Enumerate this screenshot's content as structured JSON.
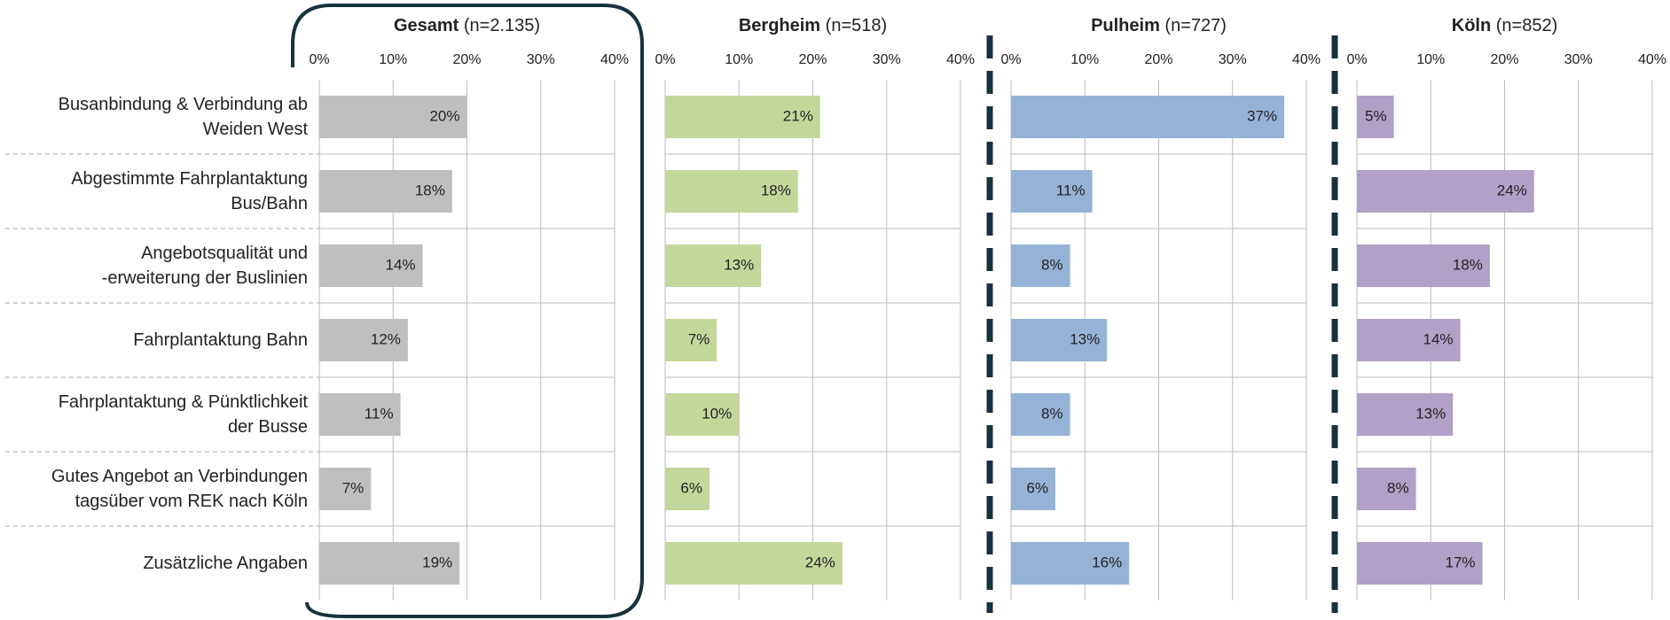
{
  "chart_data": [
    {
      "type": "bar",
      "title": "Gesamt",
      "subtitle": "(n=2.135)",
      "color": "#bfbfbf",
      "categories": [
        "Busanbindung & Verbindung ab\nWeiden West",
        "Abgestimmte Fahrplantaktung\nBus/Bahn",
        "Angebotsqualität und\n-erweiterung der Buslinien",
        "Fahrplantaktung Bahn",
        "Fahrplantaktung & Pünktlichkeit\nder Busse",
        "Gutes Angebot an Verbindungen\ntagsüber vom REK nach Köln",
        "Zusätzliche Angaben"
      ],
      "values": [
        20,
        18,
        14,
        12,
        11,
        7,
        19
      ],
      "value_labels": [
        "20%",
        "18%",
        "14%",
        "12%",
        "11%",
        "7%",
        "19%"
      ],
      "xlim": [
        0,
        40
      ],
      "xticks": [
        {
          "value": 0,
          "label": "0%"
        },
        {
          "value": 10,
          "label": "10%"
        },
        {
          "value": 20,
          "label": "20%"
        },
        {
          "value": 30,
          "label": "30%"
        },
        {
          "value": 40,
          "label": "40%"
        }
      ],
      "grid": true
    },
    {
      "type": "bar",
      "title": "Bergheim",
      "subtitle": "(n=518)",
      "color": "#c4d79b",
      "values": [
        21,
        18,
        13,
        7,
        10,
        6,
        24
      ],
      "value_labels": [
        "21%",
        "18%",
        "13%",
        "7%",
        "10%",
        "6%",
        "24%"
      ],
      "xlim": [
        0,
        40
      ],
      "xticks": [
        {
          "value": 0,
          "label": "0%"
        },
        {
          "value": 10,
          "label": "10%"
        },
        {
          "value": 20,
          "label": "20%"
        },
        {
          "value": 30,
          "label": "30%"
        },
        {
          "value": 40,
          "label": "40%"
        }
      ],
      "grid": true
    },
    {
      "type": "bar",
      "title": "Pulheim",
      "subtitle": "(n=727)",
      "color": "#95b3d7",
      "values": [
        37,
        11,
        8,
        13,
        8,
        6,
        16
      ],
      "value_labels": [
        "37%",
        "11%",
        "8%",
        "13%",
        "8%",
        "6%",
        "16%"
      ],
      "xlim": [
        0,
        40
      ],
      "xticks": [
        {
          "value": 0,
          "label": "0%"
        },
        {
          "value": 10,
          "label": "10%"
        },
        {
          "value": 20,
          "label": "20%"
        },
        {
          "value": 30,
          "label": "30%"
        },
        {
          "value": 40,
          "label": "40%"
        }
      ],
      "grid": true
    },
    {
      "type": "bar",
      "title": "Köln",
      "subtitle": "(n=852)",
      "color": "#b1a0c7",
      "values": [
        5,
        24,
        18,
        14,
        13,
        8,
        17
      ],
      "value_labels": [
        "5%",
        "24%",
        "18%",
        "14%",
        "13%",
        "8%",
        "17%"
      ],
      "xlim": [
        0,
        40
      ],
      "xticks": [
        {
          "value": 0,
          "label": "0%"
        },
        {
          "value": 10,
          "label": "10%"
        },
        {
          "value": 20,
          "label": "20%"
        },
        {
          "value": 30,
          "label": "30%"
        },
        {
          "value": 40,
          "label": "40%"
        }
      ],
      "grid": true
    }
  ]
}
